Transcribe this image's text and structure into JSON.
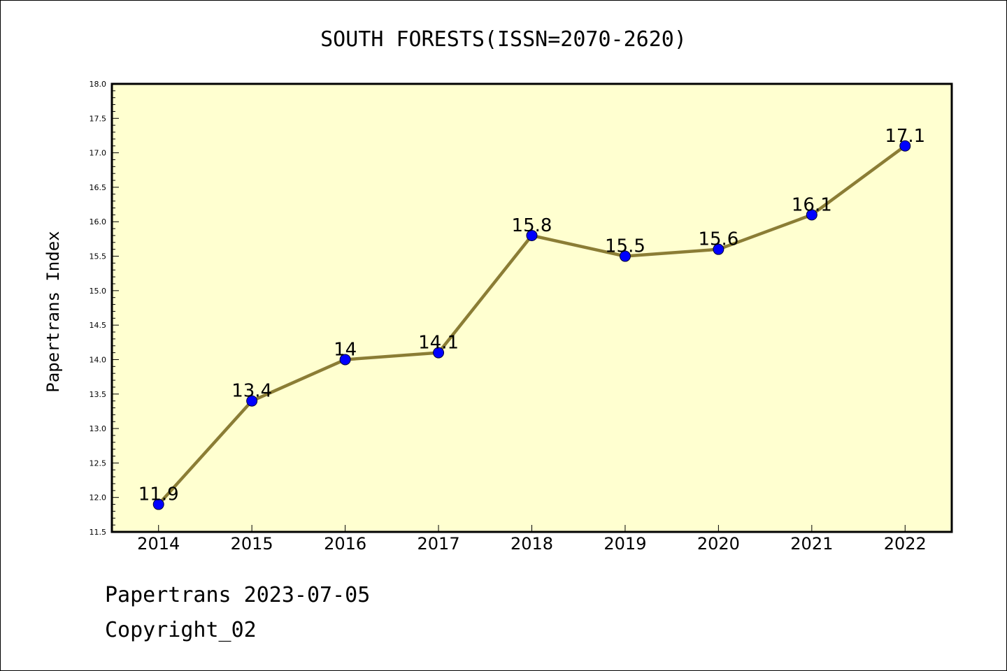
{
  "chart_data": {
    "type": "line",
    "title": "SOUTH FORESTS(ISSN=2070-2620)",
    "xlabel": "",
    "ylabel": "Papertrans Index",
    "categories": [
      "2014",
      "2015",
      "2016",
      "2017",
      "2018",
      "2019",
      "2020",
      "2021",
      "2022"
    ],
    "values": [
      11.9,
      13.4,
      14.0,
      14.1,
      15.8,
      15.5,
      15.6,
      16.1,
      17.1
    ],
    "data_labels": [
      "11.9",
      "13.4",
      "14",
      "14.1",
      "15.8",
      "15.5",
      "15.6",
      "16.1",
      "17.1"
    ],
    "ylim": [
      11.5,
      18.0
    ],
    "yticks": [
      "11.5",
      "12.0",
      "12.5",
      "13.0",
      "13.5",
      "14.0",
      "14.5",
      "15.0",
      "15.5",
      "16.0",
      "16.5",
      "17.0",
      "17.5",
      "18.0"
    ],
    "grid": false,
    "legend": "none",
    "colors": {
      "plot_background": "#ffffd0",
      "line": "#8b7d35",
      "marker": "#0000ff",
      "axes": "#000000"
    }
  },
  "footer": {
    "line1": "Papertrans 2023-07-05",
    "line2": "Copyright_02"
  }
}
